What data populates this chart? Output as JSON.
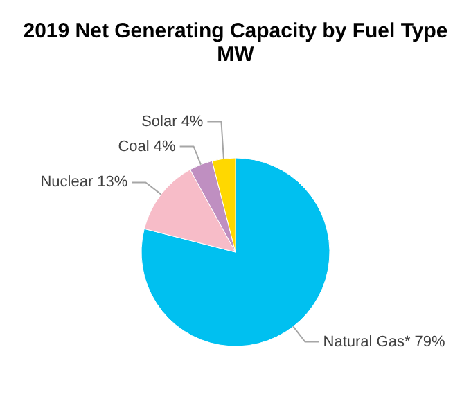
{
  "chart_data": {
    "type": "pie",
    "title": "2019 Net Generating Capacity by Fuel Type",
    "subtitle": "MW",
    "categories": [
      "Natural Gas*",
      "Nuclear",
      "Coal",
      "Solar"
    ],
    "values": [
      79,
      13,
      4,
      4
    ],
    "value_labels": [
      "79%",
      "13%",
      "4%",
      "4%"
    ],
    "colors": [
      "#00c0f0",
      "#f7bcc8",
      "#bf8fc1",
      "#ffd800"
    ]
  }
}
